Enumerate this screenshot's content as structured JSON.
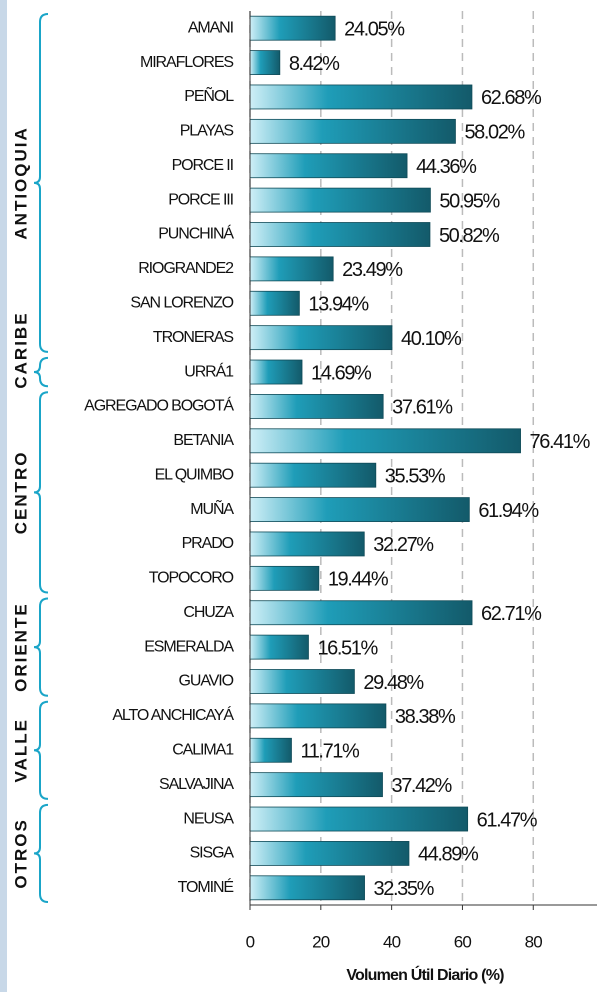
{
  "chart_data": {
    "type": "bar",
    "orientation": "horizontal",
    "categories": [
      "AMANI",
      "MIRAFLORES",
      "PEÑOL",
      "PLAYAS",
      "PORCE II",
      "PORCE III",
      "PUNCHINÁ",
      "RIOGRANDE2",
      "SAN LORENZO",
      "TRONERAS",
      "URRÁ1",
      "AGREGADO BOGOTÁ",
      "BETANIA",
      "EL QUIMBO",
      "MUÑA",
      "PRADO",
      "TOPOCORO",
      "CHUZA",
      "ESMERALDA",
      "GUAVIO",
      "ALTO ANCHICAYÁ",
      "CALIMA1",
      "SALVAJINA",
      "NEUSA",
      "SISGA",
      "TOMINÉ"
    ],
    "values": [
      24.05,
      8.42,
      62.68,
      58.02,
      44.36,
      50.95,
      50.82,
      23.49,
      13.94,
      40.1,
      14.69,
      37.61,
      76.41,
      35.53,
      61.94,
      32.27,
      19.44,
      62.71,
      16.51,
      29.48,
      38.38,
      11.71,
      37.42,
      61.47,
      44.89,
      32.35
    ],
    "value_labels": [
      "24.05%",
      "8.42%",
      "62.68%",
      "58.02%",
      "44.36%",
      "50.95%",
      "50.82%",
      "23.49%",
      "13.94%",
      "40.10%",
      "14.69%",
      "37.61%",
      "76.41%",
      "35.53%",
      "61.94%",
      "32.27%",
      "19.44%",
      "62.71%",
      "16.51%",
      "29.48%",
      "38.38%",
      "11.71%",
      "37.42%",
      "61.47%",
      "44.89%",
      "32.35%"
    ],
    "color": "#1f9db8",
    "xlabel": "Volumen Útil Diario (%)",
    "xlim": [
      0,
      98
    ],
    "xticks": [
      0,
      20,
      40,
      60,
      80
    ],
    "grid": true,
    "groups": [
      {
        "label": "ANTIOQUIA",
        "start": 0,
        "end": 9
      },
      {
        "label": "CARIBE",
        "start": 10,
        "end": 10
      },
      {
        "label": "CENTRO",
        "start": 11,
        "end": 16
      },
      {
        "label": "ORIENTE",
        "start": 17,
        "end": 19
      },
      {
        "label": "VALLE",
        "start": 20,
        "end": 22
      },
      {
        "label": "OTROS",
        "start": 23,
        "end": 25
      }
    ]
  }
}
